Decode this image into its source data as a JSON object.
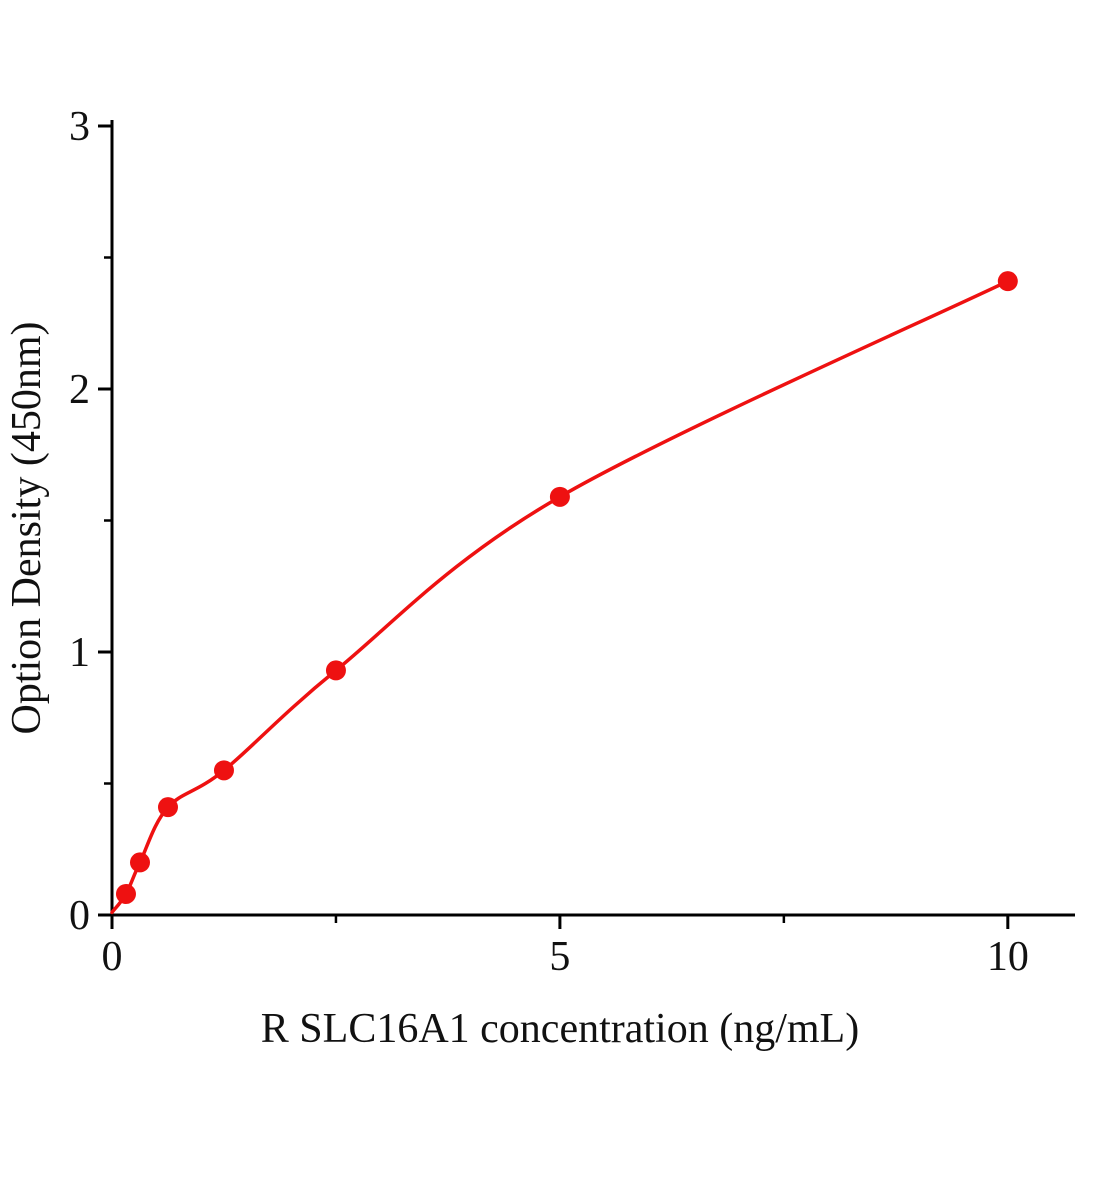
{
  "page": {
    "background": "#ffffff"
  },
  "chart_data": {
    "type": "line",
    "title": "",
    "xlabel": "R SLC16A1  concentration (ng/mL)",
    "ylabel": "Option Density (450nm)",
    "x": [
      0.156,
      0.3125,
      0.625,
      1.25,
      2.5,
      5,
      10
    ],
    "y": [
      0.08,
      0.2,
      0.41,
      0.55,
      0.93,
      1.59,
      2.41
    ],
    "curve_start": [
      0,
      0.01
    ],
    "xlim": [
      0,
      10.75
    ],
    "ylim": [
      0,
      3
    ],
    "x_major_ticks": [
      0,
      5,
      10
    ],
    "x_major_tick_labels": [
      "0",
      "5",
      "10"
    ],
    "x_minor_ticks": [
      2.5,
      7.5
    ],
    "y_major_ticks": [
      0,
      1,
      2,
      3
    ],
    "y_major_tick_labels": [
      "0",
      "1",
      "2",
      "3"
    ],
    "y_minor_ticks": [
      0.5,
      1.5,
      2.5
    ],
    "line_color": "#ee1111",
    "marker_color": "#ee1111",
    "axis_color": "#000000",
    "grid": false,
    "legend": null
  }
}
